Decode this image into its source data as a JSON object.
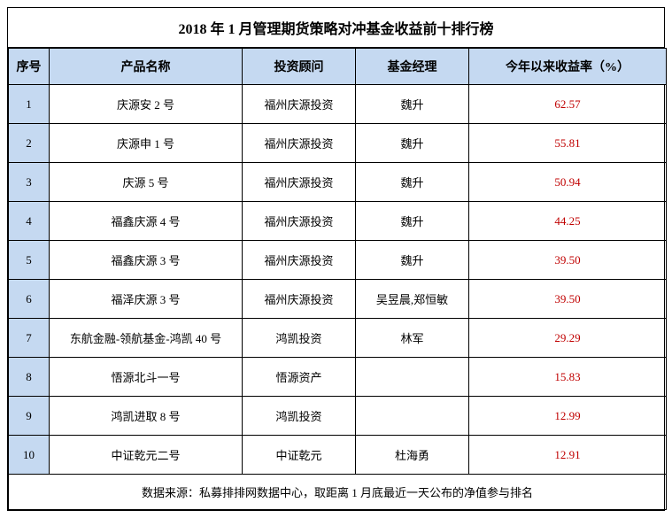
{
  "title": "2018 年 1 月管理期货策略对冲基金收益前十排行榜",
  "columns": {
    "rank": "序号",
    "name": "产品名称",
    "advisor": "投资顾问",
    "manager": "基金经理",
    "return": "今年以来收益率（%）"
  },
  "rows": [
    {
      "rank": "1",
      "name": "庆源安 2 号",
      "advisor": "福州庆源投资",
      "manager": "魏升",
      "return": "62.57"
    },
    {
      "rank": "2",
      "name": "庆源申 1 号",
      "advisor": "福州庆源投资",
      "manager": "魏升",
      "return": "55.81"
    },
    {
      "rank": "3",
      "name": "庆源 5 号",
      "advisor": "福州庆源投资",
      "manager": "魏升",
      "return": "50.94"
    },
    {
      "rank": "4",
      "name": "福鑫庆源 4 号",
      "advisor": "福州庆源投资",
      "manager": "魏升",
      "return": "44.25"
    },
    {
      "rank": "5",
      "name": "福鑫庆源 3 号",
      "advisor": "福州庆源投资",
      "manager": "魏升",
      "return": "39.50"
    },
    {
      "rank": "6",
      "name": "福泽庆源 3 号",
      "advisor": "福州庆源投资",
      "manager": "吴昱晨,郑恒敏",
      "return": "39.50"
    },
    {
      "rank": "7",
      "name": "东航金融-领航基金-鸿凯 40 号",
      "advisor": "鸿凯投资",
      "manager": "林军",
      "return": "29.29"
    },
    {
      "rank": "8",
      "name": "悟源北斗一号",
      "advisor": "悟源资产",
      "manager": "",
      "return": "15.83"
    },
    {
      "rank": "9",
      "name": "鸿凯进取 8 号",
      "advisor": "鸿凯投资",
      "manager": "",
      "return": "12.99"
    },
    {
      "rank": "10",
      "name": "中证乾元二号",
      "advisor": "中证乾元",
      "manager": "杜海勇",
      "return": "12.91"
    }
  ],
  "source": "数据来源：私募排排网数据中心，取距离 1 月底最近一天公布的净值参与排名",
  "colors": {
    "header_bg": "#c5d9f1",
    "return_text": "#c00000",
    "border": "#000000",
    "background": "#ffffff"
  }
}
